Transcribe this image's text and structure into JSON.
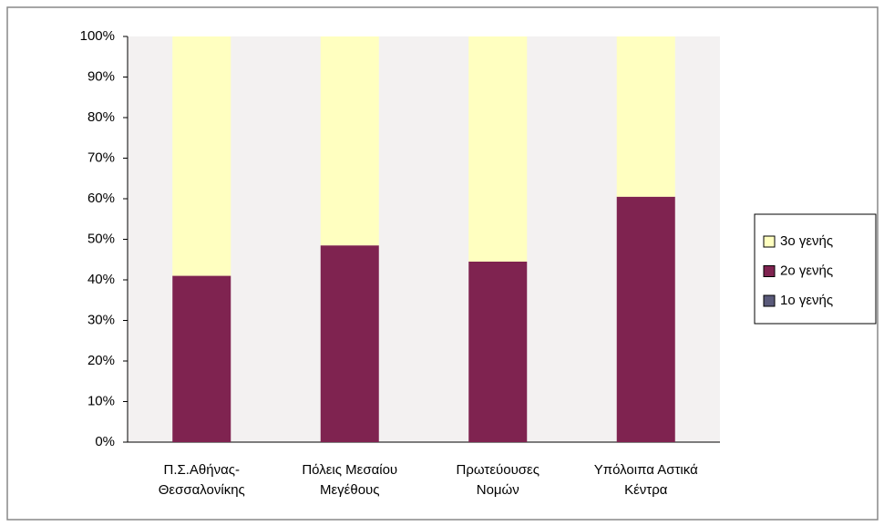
{
  "chart_data": {
    "type": "stacked_bar",
    "categories": [
      "Π.Σ.Αθήνας- Θεσσαλονίκης",
      "Πόλεις Μεσαίου Μεγέθους",
      "Πρωτεύουσες Νομών",
      "Υπόλοιπα Αστικά Κέντρα"
    ],
    "series": [
      {
        "name": "1ο γενής",
        "color": "#5a5a7a",
        "values": [
          0,
          0,
          0,
          0
        ]
      },
      {
        "name": "2ο γενής",
        "color": "#7f2350",
        "values": [
          41,
          48.5,
          44.5,
          60.5
        ]
      },
      {
        "name": "3ο γενής",
        "color": "#ffffc0",
        "values": [
          59,
          51.5,
          55.5,
          39.5
        ]
      }
    ],
    "ylim": [
      0,
      100
    ],
    "yticks": [
      {
        "value": 0,
        "label": "0%"
      },
      {
        "value": 10,
        "label": "10%"
      },
      {
        "value": 20,
        "label": "20%"
      },
      {
        "value": 30,
        "label": "30%"
      },
      {
        "value": 40,
        "label": "40%"
      },
      {
        "value": 50,
        "label": "50%"
      },
      {
        "value": 60,
        "label": "60%"
      },
      {
        "value": 70,
        "label": "70%"
      },
      {
        "value": 80,
        "label": "80%"
      },
      {
        "value": 90,
        "label": "90%"
      },
      {
        "value": 100,
        "label": "100%"
      }
    ],
    "grid": false,
    "legend": "right"
  }
}
